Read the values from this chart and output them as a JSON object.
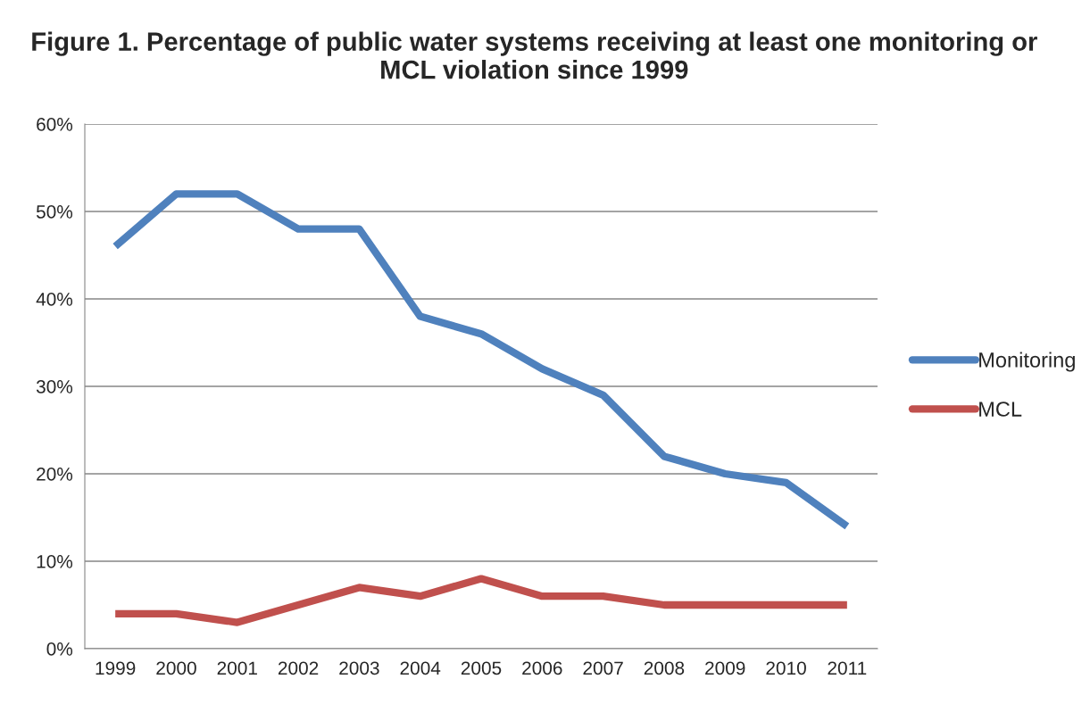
{
  "chart_data": {
    "type": "line",
    "title": "Figure 1. Percentage of public water systems receiving at least one monitoring or MCL violation since 1999",
    "categories": [
      "1999",
      "2000",
      "2001",
      "2002",
      "2003",
      "2004",
      "2005",
      "2006",
      "2007",
      "2008",
      "2009",
      "2010",
      "2011"
    ],
    "series": [
      {
        "name": "Monitoring",
        "color": "#4f81bd",
        "values": [
          46,
          52,
          52,
          48,
          48,
          38,
          36,
          32,
          29,
          22,
          20,
          19,
          14
        ]
      },
      {
        "name": "MCL",
        "color": "#c0504d",
        "values": [
          4,
          4,
          3,
          5,
          7,
          6,
          8,
          6,
          6,
          5,
          5,
          5,
          5
        ]
      }
    ],
    "ylim": [
      0,
      60
    ],
    "yticks": [
      {
        "value": 0,
        "label": "0%"
      },
      {
        "value": 10,
        "label": "10%"
      },
      {
        "value": 20,
        "label": "20%"
      },
      {
        "value": 30,
        "label": "30%"
      },
      {
        "value": 40,
        "label": "40%"
      },
      {
        "value": 50,
        "label": "50%"
      },
      {
        "value": 60,
        "label": "60%"
      }
    ],
    "grid": "y",
    "legend": "right",
    "marker": "none",
    "line_style": "solid"
  }
}
